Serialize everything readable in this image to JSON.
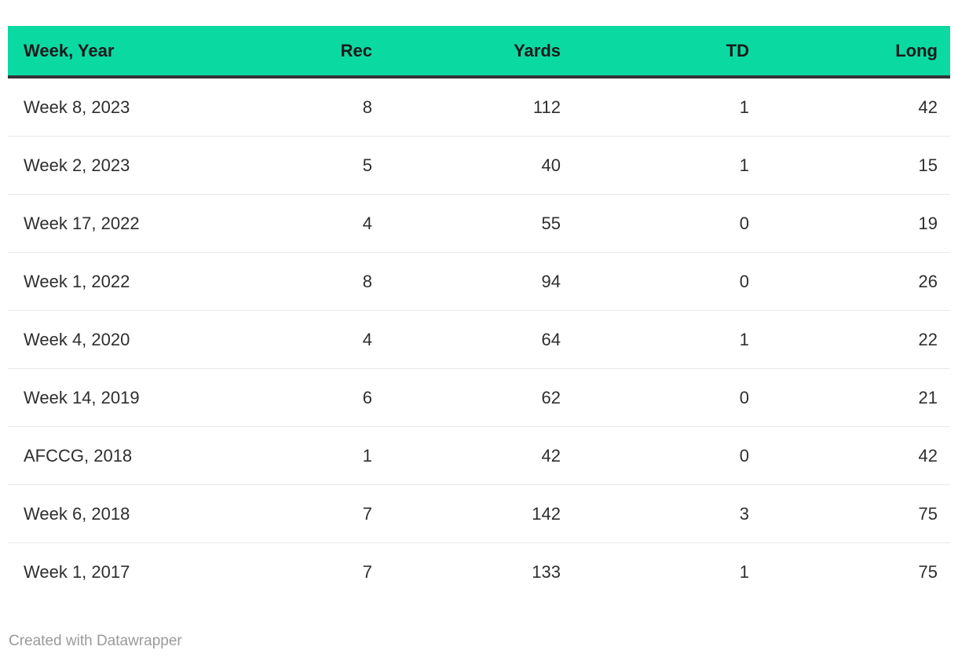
{
  "chart_data": {
    "type": "table",
    "columns": [
      {
        "label": "Week, Year",
        "align": "left"
      },
      {
        "label": "Rec",
        "align": "right"
      },
      {
        "label": "Yards",
        "align": "right"
      },
      {
        "label": "TD",
        "align": "right"
      },
      {
        "label": "Long",
        "align": "right"
      }
    ],
    "rows": [
      [
        "Week 8, 2023",
        "8",
        "112",
        "1",
        "42"
      ],
      [
        "Week 2, 2023",
        "5",
        "40",
        "1",
        "15"
      ],
      [
        "Week 17, 2022",
        "4",
        "55",
        "0",
        "19"
      ],
      [
        "Week 1, 2022",
        "8",
        "94",
        "0",
        "26"
      ],
      [
        "Week 4, 2020",
        "4",
        "64",
        "1",
        "22"
      ],
      [
        "Week 14, 2019",
        "6",
        "62",
        "0",
        "21"
      ],
      [
        "AFCCG, 2018",
        "1",
        "42",
        "0",
        "42"
      ],
      [
        "Week 6, 2018",
        "7",
        "142",
        "3",
        "75"
      ],
      [
        "Week 1, 2017",
        "7",
        "133",
        "1",
        "75"
      ]
    ],
    "title": "",
    "legend_position": "none",
    "grid": "horizontal-row-dividers"
  },
  "footer": {
    "credit": "Created with Datawrapper"
  },
  "colors": {
    "header_bg": "#0bd9a2",
    "header_text": "#1a1a1a",
    "header_border": "#333333",
    "body_text": "#2e2e2e",
    "row_divider": "#e9e9e9",
    "footer_text": "#9a9a9a"
  }
}
